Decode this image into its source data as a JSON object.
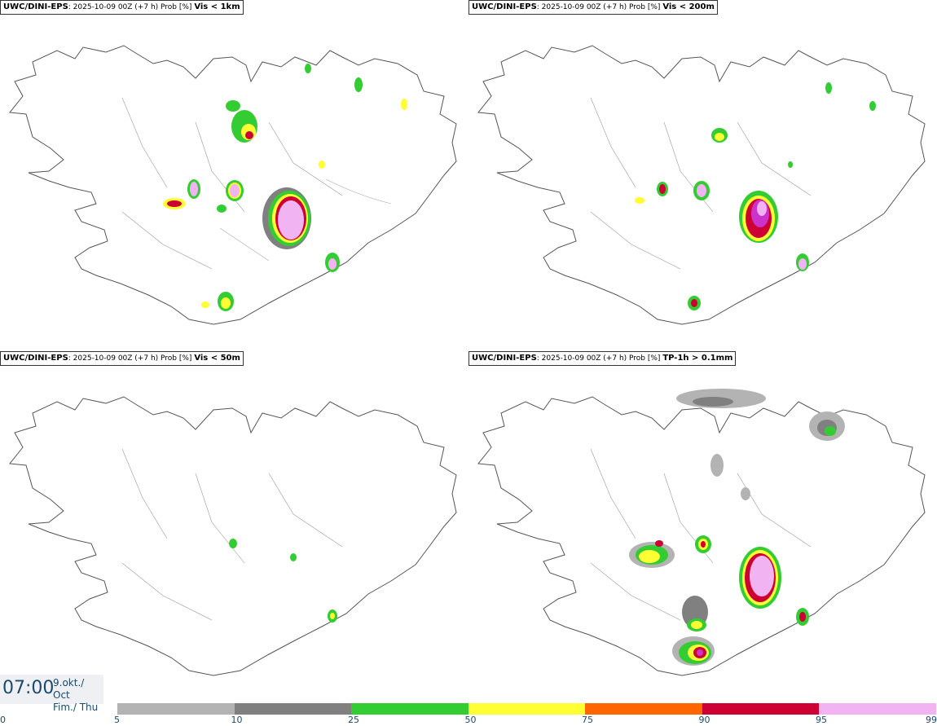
{
  "panels": [
    {
      "source": "UWC/DINI-EPS",
      "run": ": 2025-10-09 00Z (+7 h) Prob [%] ",
      "variable": "Vis < 1km"
    },
    {
      "source": "UWC/DINI-EPS",
      "run": ": 2025-10-09 00Z (+7 h) Prob [%] ",
      "variable": "Vis < 200m"
    },
    {
      "source": "UWC/DINI-EPS",
      "run": ": 2025-10-09 00Z (+7 h) Prob [%] ",
      "variable": "Vis < 50m"
    },
    {
      "source": "UWC/DINI-EPS",
      "run": ": 2025-10-09 00Z (+7 h) Prob [%] ",
      "variable": "TP-1h > 0.1mm"
    }
  ],
  "timestamp": {
    "time": "07:00",
    "date_line1": "9.okt./ Oct",
    "date_line2": "Fim./ Thu"
  },
  "colorbar": {
    "ticks": [
      "0",
      "5",
      "10",
      "25",
      "50",
      "75",
      "90",
      "95",
      "99"
    ],
    "colors": [
      "#ffffff",
      "#b3b3b3",
      "#808080",
      "#33cc33",
      "#ffff33",
      "#ff6600",
      "#cc0033",
      "#cc33cc",
      "#f2b3f2"
    ]
  }
}
